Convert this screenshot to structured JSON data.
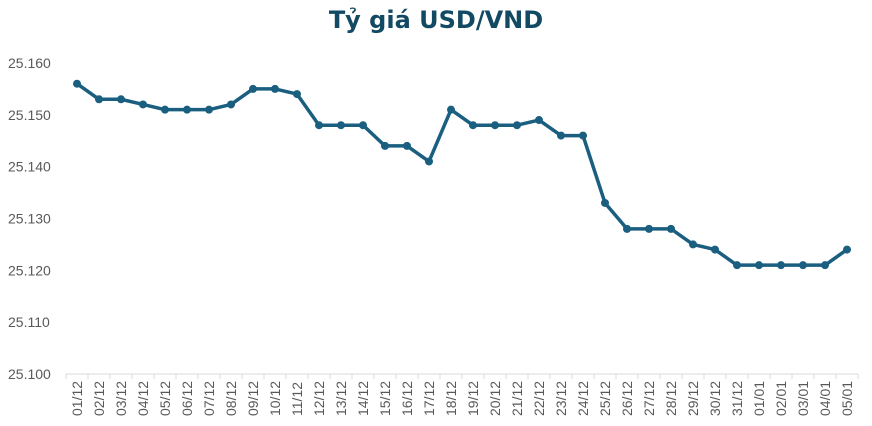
{
  "chart_data": {
    "type": "line",
    "title": "Tỷ giá USD/VND",
    "xlabel": "",
    "ylabel": "",
    "ylim": [
      25100,
      25160
    ],
    "yticks": [
      25100,
      25110,
      25120,
      25130,
      25140,
      25150,
      25160
    ],
    "ytick_labels": [
      "25.100",
      "25.110",
      "25.120",
      "25.130",
      "25.140",
      "25.150",
      "25.160"
    ],
    "grid": false,
    "legend": null,
    "categories": [
      "01/12",
      "02/12",
      "03/12",
      "04/12",
      "05/12",
      "06/12",
      "07/12",
      "08/12",
      "09/12",
      "10/12",
      "11/12",
      "12/12",
      "13/12",
      "14/12",
      "15/12",
      "16/12",
      "17/12",
      "18/12",
      "19/12",
      "20/12",
      "21/12",
      "22/12",
      "23/12",
      "24/12",
      "25/12",
      "26/12",
      "27/12",
      "28/12",
      "29/12",
      "30/12",
      "31/12",
      "01/01",
      "02/01",
      "03/01",
      "04/01",
      "05/01"
    ],
    "series": [
      {
        "name": "USD/VND",
        "color": "#1a5e80",
        "values": [
          25156,
          25153,
          25153,
          25152,
          25151,
          25151,
          25151,
          25152,
          25155,
          25155,
          25154,
          25148,
          25148,
          25148,
          25144,
          25144,
          25141,
          25151,
          25148,
          25148,
          25148,
          25149,
          25146,
          25146,
          25133,
          25128,
          25128,
          25128,
          25125,
          25124,
          25121,
          25121,
          25121,
          25121,
          25121,
          25124
        ]
      }
    ]
  },
  "colors": {
    "title": "#134a63",
    "line": "#1a5e80",
    "axis": "#d9d9d9",
    "tick_text": "#595959"
  }
}
